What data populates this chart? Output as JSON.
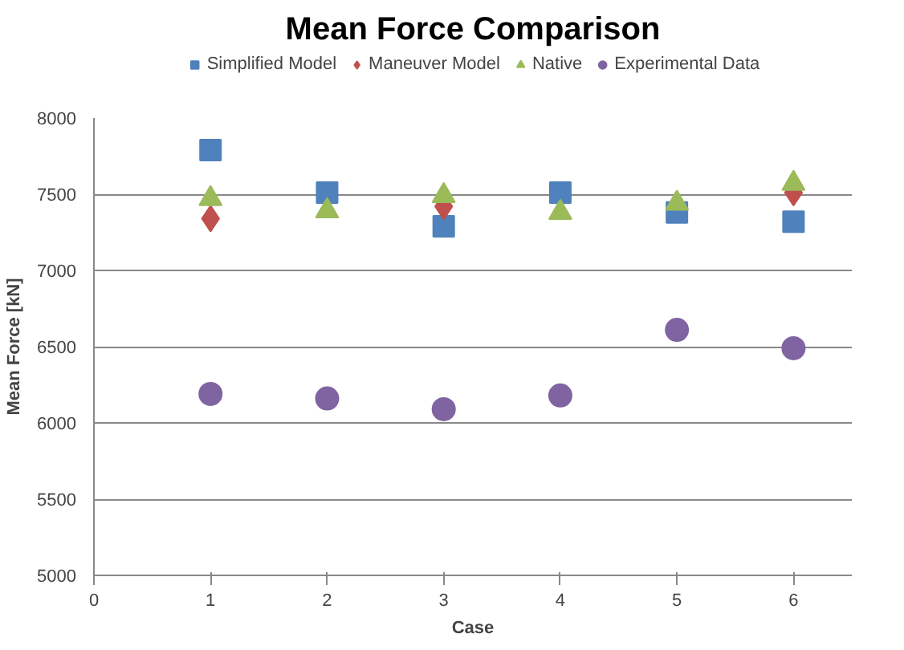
{
  "chart_data": {
    "type": "scatter",
    "title": "Mean Force Comparison",
    "xlabel": "Case",
    "ylabel": "Mean Force [kN]",
    "x": [
      1,
      2,
      3,
      4,
      5,
      6
    ],
    "series": [
      {
        "name": "Simplified Model",
        "color": "#4f81bd",
        "marker": "square",
        "values": [
          7790,
          7510,
          7290,
          7510,
          7380,
          7320
        ]
      },
      {
        "name": "Maneuver Model",
        "color": "#c0504d",
        "marker": "diamond",
        "values": [
          7340,
          null,
          7420,
          null,
          null,
          7510
        ]
      },
      {
        "name": "Native",
        "color": "#9bbb59",
        "marker": "triangle",
        "values": [
          7470,
          7390,
          7490,
          7380,
          7440,
          7570
        ]
      },
      {
        "name": "Experimental Data",
        "color": "#8064a2",
        "marker": "circle",
        "values": [
          6190,
          6160,
          6090,
          6180,
          6610,
          6490
        ]
      }
    ],
    "xlim": [
      0,
      6.5
    ],
    "xticks": [
      0,
      1,
      2,
      3,
      4,
      5,
      6
    ],
    "ylim": [
      5000,
      8000
    ],
    "yticks": [
      5000,
      5500,
      6000,
      6500,
      7000,
      7500,
      8000
    ],
    "grid": "y",
    "legend": "top"
  }
}
